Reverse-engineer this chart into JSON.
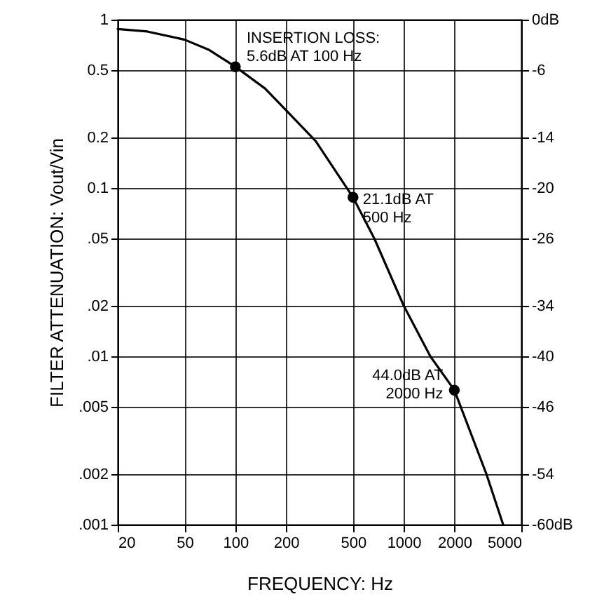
{
  "chart_data": {
    "type": "line",
    "xlabel": "FREQUENCY: Hz",
    "ylabel": "FILTER ATTENUATION: Vout/Vin",
    "log": "xy",
    "grid": true,
    "xlim": [
      20,
      5000
    ],
    "xticks": [
      20,
      50,
      100,
      200,
      500,
      1000,
      2000,
      5000
    ],
    "ylim": [
      0.001,
      1
    ],
    "yticks": [
      1,
      0.5,
      0.2,
      0.1,
      {
        "value": 0.05,
        "label": ".05"
      },
      {
        "value": 0.02,
        "label": ".02"
      },
      {
        "value": 0.01,
        "label": ".01"
      },
      {
        "value": 0.005,
        "label": ".005"
      },
      {
        "value": 0.002,
        "label": ".002"
      },
      {
        "value": 0.001,
        "label": ".001"
      }
    ],
    "y2lim": [
      -60,
      0
    ],
    "y2ticks": [
      {
        "value": 0,
        "label": "0dB"
      },
      -6,
      -14,
      -20,
      -26,
      -34,
      -40,
      -46,
      -54,
      {
        "value": -60,
        "label": "-60dB"
      }
    ],
    "series": [
      {
        "type": "line",
        "color": "#000000",
        "marker": "none",
        "x": [
          20,
          30,
          50,
          70,
          100,
          150,
          200,
          300,
          500,
          670,
          1000,
          1440,
          2000,
          3100,
          3900
        ],
        "values": [
          0.88,
          0.85,
          0.76,
          0.66,
          0.525,
          0.39,
          0.29,
          0.19,
          0.088,
          0.05,
          0.02,
          0.01,
          0.0063,
          0.002,
          0.001
        ]
      },
      {
        "type": "scatter",
        "color": "#000000",
        "marker": "circle",
        "x": [
          100,
          500,
          2000
        ],
        "values": [
          0.525,
          0.088,
          0.0063
        ]
      }
    ],
    "annotations": [
      {
        "text": "INSERTION LOSS:\n5.6dB AT 100 Hz",
        "x": 100,
        "y": 0.525
      },
      {
        "text": "21.1dB AT\n500 Hz",
        "x": 500,
        "y": 0.088
      },
      {
        "text": "44.0dB AT\n2000 Hz",
        "x": 2000,
        "y": 0.0063
      }
    ]
  }
}
